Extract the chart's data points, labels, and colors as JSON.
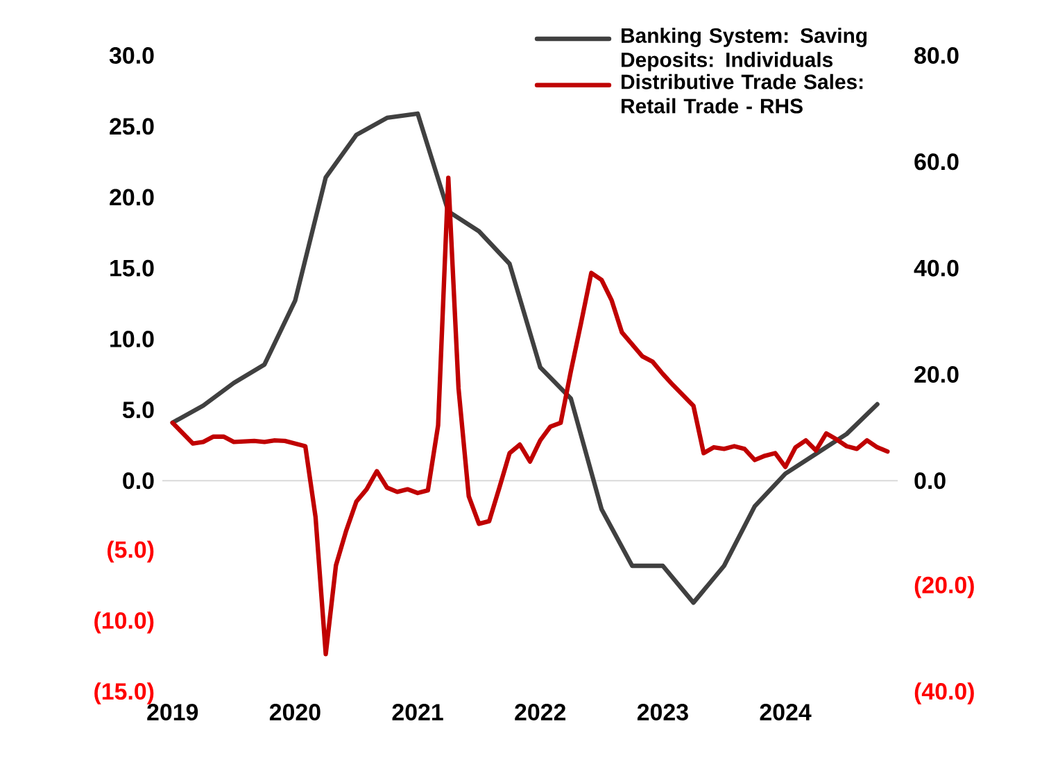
{
  "chart_data": {
    "type": "line",
    "xlim": [
      "2018-12",
      "2024-12"
    ],
    "xticks": [
      {
        "value": "2019-01",
        "label": "2019"
      },
      {
        "value": "2020-01",
        "label": "2020"
      },
      {
        "value": "2021-01",
        "label": "2021"
      },
      {
        "value": "2022-01",
        "label": "2022"
      },
      {
        "value": "2023-01",
        "label": "2023"
      },
      {
        "value": "2024-01",
        "label": "2024"
      }
    ],
    "ylim": [
      -15,
      30
    ],
    "yticks": [
      {
        "value": -15,
        "label": "(15.0)"
      },
      {
        "value": -10,
        "label": "(10.0)"
      },
      {
        "value": -5,
        "label": "(5.0)"
      },
      {
        "value": 0,
        "label": "0.0"
      },
      {
        "value": 5,
        "label": "5.0"
      },
      {
        "value": 10,
        "label": "10.0"
      },
      {
        "value": 15,
        "label": "15.0"
      },
      {
        "value": 20,
        "label": "20.0"
      },
      {
        "value": 25,
        "label": "25.0"
      },
      {
        "value": 30,
        "label": "30.0"
      }
    ],
    "y2lim": [
      -40,
      80
    ],
    "y2ticks": [
      {
        "value": -40,
        "label": "(40.0)"
      },
      {
        "value": -20,
        "label": "(20.0)"
      },
      {
        "value": 0,
        "label": "0.0"
      },
      {
        "value": 20,
        "label": "20.0"
      },
      {
        "value": 40,
        "label": "40.0"
      },
      {
        "value": 60,
        "label": "60.0"
      },
      {
        "value": 80,
        "label": "80.0"
      }
    ],
    "legend": "top right",
    "ref_lines": [
      {
        "axis": "y",
        "value": 0,
        "color": "#d9d9d9"
      }
    ],
    "series": [
      {
        "name": "Banking System: Saving Deposits: Individuals",
        "color": "#404040",
        "x": [
          "2019-01",
          "2019-04",
          "2019-07",
          "2019-10",
          "2020-01",
          "2020-04",
          "2020-07",
          "2020-10",
          "2021-01",
          "2021-04",
          "2021-07",
          "2021-10",
          "2022-01",
          "2022-04",
          "2022-07",
          "2022-10",
          "2023-01",
          "2023-04",
          "2023-07",
          "2023-10",
          "2024-01",
          "2024-04",
          "2024-07",
          "2024-10"
        ],
        "values": [
          4.1,
          5.3,
          6.9,
          8.2,
          12.7,
          21.4,
          24.4,
          25.6,
          25.9,
          19.0,
          17.6,
          15.3,
          8.0,
          5.8,
          -2.0,
          -6.0,
          -6.0,
          -8.6,
          -6.0,
          -1.8,
          0.5,
          1.9,
          3.3,
          5.4
        ]
      },
      {
        "name": "Distributive Trade Sales: Retail Trade - RHS",
        "color": "#c00000",
        "axis": "y2",
        "x": [
          "2019-01",
          "2019-03",
          "2019-04",
          "2019-05",
          "2019-06",
          "2019-07",
          "2019-09",
          "2019-10",
          "2019-11",
          "2019-12",
          "2020-02",
          "2020-03",
          "2020-04",
          "2020-05",
          "2020-06",
          "2020-07",
          "2020-08",
          "2020-09",
          "2020-10",
          "2020-11",
          "2020-12",
          "2021-01",
          "2021-02",
          "2021-03",
          "2021-04",
          "2021-05",
          "2021-06",
          "2021-07",
          "2021-08",
          "2021-09",
          "2021-10",
          "2021-11",
          "2021-12",
          "2022-01",
          "2022-02",
          "2022-03",
          "2022-04",
          "2022-05",
          "2022-06",
          "2022-07",
          "2022-08",
          "2022-09",
          "2022-11",
          "2022-12",
          "2023-01",
          "2023-02",
          "2023-04",
          "2023-05",
          "2023-06",
          "2023-07",
          "2023-08",
          "2023-09",
          "2023-10",
          "2023-11",
          "2023-12",
          "2024-01",
          "2024-02",
          "2024-03",
          "2024-04",
          "2024-05",
          "2024-06",
          "2024-07",
          "2024-08",
          "2024-09",
          "2024-10",
          "2024-11"
        ],
        "values": [
          10.9,
          7.0,
          7.3,
          8.3,
          8.3,
          7.3,
          7.5,
          7.3,
          7.6,
          7.5,
          6.5,
          -6.8,
          -32.6,
          -15.9,
          -9.4,
          -3.9,
          -1.6,
          1.8,
          -1.3,
          -2.1,
          -1.6,
          -2.3,
          -1.8,
          10.4,
          57.0,
          17.4,
          -2.9,
          -8.1,
          -7.6,
          -1.3,
          5.2,
          6.8,
          3.6,
          7.6,
          10.2,
          10.9,
          20.6,
          29.7,
          39.1,
          37.8,
          33.9,
          27.9,
          23.4,
          22.4,
          20.1,
          18.0,
          14.1,
          5.2,
          6.3,
          6.0,
          6.5,
          6.0,
          3.9,
          4.7,
          5.2,
          2.6,
          6.3,
          7.6,
          5.7,
          8.9,
          7.8,
          6.5,
          6.0,
          7.6,
          6.3,
          5.5
        ]
      }
    ]
  }
}
